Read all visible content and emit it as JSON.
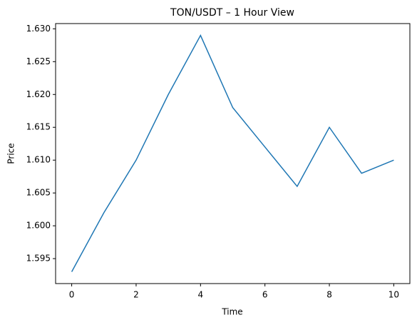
{
  "chart_data": {
    "type": "line",
    "title": "TON/USDT – 1 Hour View",
    "x_label": "Time",
    "y_label": "Price",
    "x": [
      0,
      1,
      2,
      3,
      4,
      5,
      6,
      7,
      8,
      9,
      10
    ],
    "series": [
      {
        "name": "TON/USDT",
        "color": "#1f77b4",
        "values": [
          1.593,
          1.602,
          1.61,
          1.62,
          1.629,
          1.618,
          1.612,
          1.606,
          1.615,
          1.608,
          1.61
        ]
      }
    ],
    "xlim": [
      -0.5,
      10.5
    ],
    "xticks": [
      0,
      2,
      4,
      6,
      8,
      10
    ],
    "ylim": [
      1.5912,
      1.6308
    ],
    "yticks": [
      1.595,
      {
        "value": 1.6,
        "label": "1.600"
      },
      1.605,
      {
        "value": 1.61,
        "label": "1.610"
      },
      1.615,
      {
        "value": 1.62,
        "label": "1.620"
      },
      1.625,
      {
        "value": 1.63,
        "label": "1.630"
      }
    ],
    "grid": false
  }
}
